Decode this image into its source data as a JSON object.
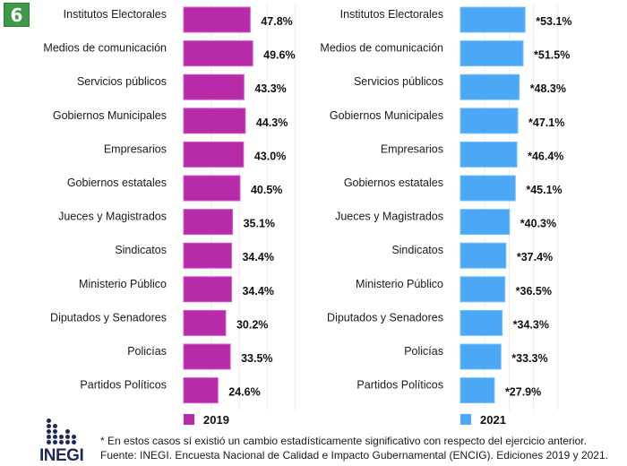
{
  "badge": {
    "number": "6",
    "color": "#3c9a48"
  },
  "chart_data": [
    {
      "type": "bar",
      "orientation": "horizontal",
      "title": "",
      "series_name": "2019",
      "color": "#b72ba8",
      "categories": [
        "Institutos Electorales",
        "Medios de comunicación",
        "Servicios públicos",
        "Gobiernos Municipales",
        "Empresarios",
        "Gobiernos estatales",
        "Jueces y Magistrados",
        "Sindicatos",
        "Ministerio Público",
        "Diputados y Senadores",
        "Policías",
        "Partidos Políticos"
      ],
      "values": [
        47.8,
        49.6,
        43.3,
        44.3,
        43.0,
        40.5,
        35.1,
        34.4,
        34.4,
        30.2,
        33.5,
        24.6
      ],
      "value_labels": [
        "47.8%",
        "49.6%",
        "43.3%",
        "44.3%",
        "43.0%",
        "40.5%",
        "35.1%",
        "34.4%",
        "34.4%",
        "30.2%",
        "33.5%",
        "24.6%"
      ],
      "xlabel": "",
      "ylabel": "",
      "legend": {
        "label": "2019",
        "placement": "bottom"
      },
      "grid": true
    },
    {
      "type": "bar",
      "orientation": "horizontal",
      "title": "",
      "series_name": "2021",
      "color": "#4aa8f5",
      "categories": [
        "Institutos Electorales",
        "Medios de comunicación",
        "Servicios públicos",
        "Gobiernos Municipales",
        "Empresarios",
        "Gobiernos estatales",
        "Jueces y Magistrados",
        "Sindicatos",
        "Ministerio Público",
        "Diputados y Senadores",
        "Policías",
        "Partidos Políticos"
      ],
      "values": [
        53.1,
        51.5,
        48.3,
        47.1,
        46.4,
        45.1,
        40.3,
        37.4,
        36.5,
        34.3,
        33.3,
        27.9
      ],
      "value_labels": [
        "*53.1%",
        "*51.5%",
        "*48.3%",
        "*47.1%",
        "*46.4%",
        "*45.1%",
        "*40.3%",
        "*37.4%",
        "*36.5%",
        "*34.3%",
        "*33.3%",
        "*27.9%"
      ],
      "xlabel": "",
      "ylabel": "",
      "legend": {
        "label": "2021",
        "placement": "bottom"
      },
      "grid": true
    }
  ],
  "logo": {
    "text": "INEGI",
    "color": "#1d2a55"
  },
  "footnotes": {
    "significance": "* En estos casos sí existió un cambio estadísticamente significativo con respecto del ejercicio anterior.",
    "source": "Fuente: INEGI. Encuesta Nacional de Calidad e Impacto Gubernamental (ENCIG). Ediciones 2019 y 2021."
  }
}
